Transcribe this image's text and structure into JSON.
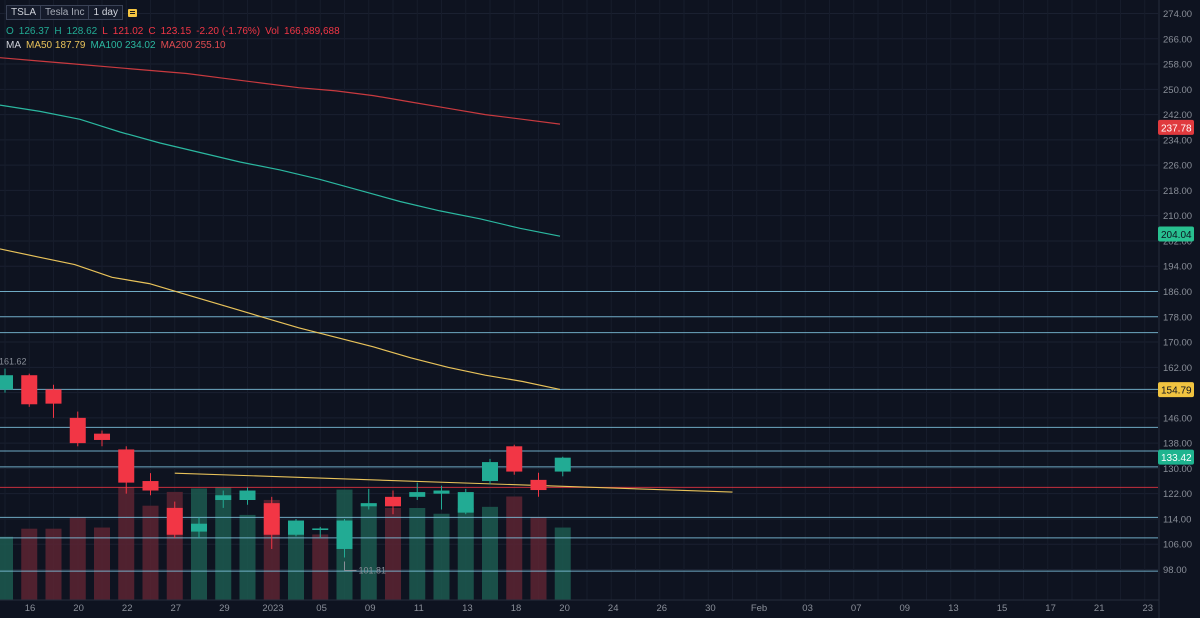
{
  "header": {
    "symbol": "TSLA",
    "name": "Tesla Inc",
    "interval": "1 day"
  },
  "ohlc": {
    "o_label": "O",
    "o": "126.37",
    "h_label": "H",
    "h": "128.62",
    "l_label": "L",
    "l": "121.02",
    "c_label": "C",
    "c": "123.15",
    "change": "-2.20 (-1.76%)",
    "vol_label": "Vol",
    "vol": "166,989,688"
  },
  "ma_legend": {
    "label": "MA",
    "ma50": "MA50 187.79",
    "ma100": "MA100 234.02",
    "ma200": "MA200 255.10"
  },
  "colors": {
    "background": "#0e1320",
    "up": "#22ab94",
    "down": "#f23645",
    "ma50": "#e8c25a",
    "ma100": "#2bb8a0",
    "ma200": "#c93a3f",
    "hline": "#7fc4e0",
    "axis_text": "#8a8f99"
  },
  "chart_data": {
    "type": "candlestick",
    "symbol": "TSLA",
    "interval": "1 day",
    "y_axis": {
      "range": [
        94,
        278
      ],
      "ticks": [
        98,
        106,
        114,
        122,
        130,
        138,
        146,
        154,
        162,
        170,
        178,
        186,
        194,
        202,
        210,
        218,
        226,
        234,
        242,
        250,
        258,
        266,
        274
      ],
      "tick_labels": [
        "98.00",
        "106.00",
        "114.00",
        "122.00",
        "130.00",
        "138.00",
        "146.00",
        "154.00",
        "162.00",
        "170.00",
        "178.00",
        "186.00",
        "194.00",
        "202.00",
        "210.00",
        "218.00",
        "226.00",
        "234.00",
        "242.00",
        "250.00",
        "258.00",
        "266.00",
        "274.00"
      ],
      "side": "right"
    },
    "x_axis": {
      "labels": [
        "16",
        "20",
        "22",
        "27",
        "29",
        "2023",
        "05",
        "09",
        "11",
        "13",
        "18",
        "20",
        "24",
        "26",
        "30",
        "Feb",
        "03",
        "07",
        "09",
        "13",
        "15",
        "17",
        "21",
        "23"
      ]
    },
    "candles": [
      {
        "o": 155.0,
        "h": 161.6,
        "l": 154.0,
        "c": 159.5
      },
      {
        "o": 159.5,
        "h": 160.0,
        "l": 149.5,
        "c": 150.3
      },
      {
        "o": 155.0,
        "h": 156.5,
        "l": 146.0,
        "c": 150.5
      },
      {
        "o": 146.0,
        "h": 148.0,
        "l": 137.0,
        "c": 138.0
      },
      {
        "o": 141.0,
        "h": 142.0,
        "l": 137.0,
        "c": 139.0
      },
      {
        "o": 136.0,
        "h": 137.0,
        "l": 122.0,
        "c": 125.5
      },
      {
        "o": 126.0,
        "h": 128.5,
        "l": 121.5,
        "c": 123.0
      },
      {
        "o": 117.5,
        "h": 119.5,
        "l": 108.0,
        "c": 109.0
      },
      {
        "o": 110.0,
        "h": 114.5,
        "l": 108.0,
        "c": 112.5
      },
      {
        "o": 120.0,
        "h": 123.0,
        "l": 117.5,
        "c": 121.5
      },
      {
        "o": 120.0,
        "h": 124.0,
        "l": 118.5,
        "c": 123.0
      },
      {
        "o": 119.0,
        "h": 121.0,
        "l": 104.5,
        "c": 109.0
      },
      {
        "o": 109.0,
        "h": 114.0,
        "l": 108.5,
        "c": 113.5
      },
      {
        "o": 110.5,
        "h": 111.5,
        "l": 108.0,
        "c": 111.0
      },
      {
        "o": 104.5,
        "h": 114.0,
        "l": 101.8,
        "c": 113.5
      },
      {
        "o": 118.0,
        "h": 123.5,
        "l": 117.0,
        "c": 119.0
      },
      {
        "o": 121.0,
        "h": 123.0,
        "l": 115.5,
        "c": 118.0
      },
      {
        "o": 121.0,
        "h": 125.5,
        "l": 120.0,
        "c": 122.5
      },
      {
        "o": 122.0,
        "h": 124.5,
        "l": 117.0,
        "c": 123.0
      },
      {
        "o": 116.0,
        "h": 123.5,
        "l": 115.5,
        "c": 122.5
      },
      {
        "o": 126.0,
        "h": 133.0,
        "l": 125.0,
        "c": 132.0
      },
      {
        "o": 137.0,
        "h": 137.5,
        "l": 128.0,
        "c": 129.0
      },
      {
        "o": 126.37,
        "h": 128.62,
        "l": 121.02,
        "c": 123.15
      },
      {
        "o": 129.0,
        "h": 133.7,
        "l": 127.5,
        "c": 133.4
      }
    ],
    "volume_relative": [
      0.55,
      0.62,
      0.62,
      0.72,
      0.63,
      0.98,
      0.82,
      0.94,
      0.97,
      0.98,
      0.74,
      0.87,
      0.63,
      0.57,
      0.96,
      0.84,
      0.8,
      0.8,
      0.75,
      0.8,
      0.81,
      0.9,
      0.72,
      0.63
    ],
    "volume_is_up": [
      true,
      false,
      false,
      false,
      false,
      false,
      false,
      false,
      true,
      true,
      true,
      false,
      true,
      false,
      true,
      true,
      false,
      true,
      true,
      true,
      true,
      false,
      false,
      true
    ],
    "moving_averages": [
      {
        "name": "MA50",
        "values": [
          199.5,
          197.0,
          194.5,
          190.5,
          188.5,
          185.0,
          181.5,
          178.0,
          174.5,
          171.5,
          168.5,
          165.0,
          162.0,
          159.5,
          157.5,
          155.0
        ]
      },
      {
        "name": "MA100",
        "values": [
          245.0,
          243.0,
          240.5,
          236.5,
          233.0,
          230.0,
          227.0,
          224.5,
          221.5,
          218.0,
          214.5,
          211.5,
          209.0,
          206.0,
          203.5
        ]
      },
      {
        "name": "MA200",
        "values": [
          260.0,
          259.0,
          258.0,
          257.0,
          256.0,
          255.0,
          253.5,
          252.0,
          250.5,
          249.5,
          248.0,
          246.0,
          244.0,
          242.0,
          240.5,
          239.0
        ]
      }
    ],
    "horizontal_levels": [
      186.0,
      178.0,
      173.0,
      155.0,
      143.0,
      135.5,
      130.5,
      114.5,
      108.0,
      97.5
    ],
    "red_level": 124.0,
    "trend_line": {
      "from": [
        7,
        128.5
      ],
      "to": [
        30,
        122.5
      ]
    },
    "price_badges": [
      {
        "value": 237.78,
        "label": "237.78",
        "series": "MA200"
      },
      {
        "value": 204.04,
        "label": "204.04",
        "series": "MA100"
      },
      {
        "value": 154.79,
        "label": "154.79",
        "series": "MA50"
      },
      {
        "value": 133.42,
        "label": "133.42",
        "series": "last"
      }
    ],
    "annotations": [
      {
        "label": "161.62",
        "kind": "high",
        "candle": 0
      },
      {
        "label": "101.81",
        "kind": "low",
        "candle": 14
      }
    ],
    "grid": true,
    "legend": "top-left"
  }
}
